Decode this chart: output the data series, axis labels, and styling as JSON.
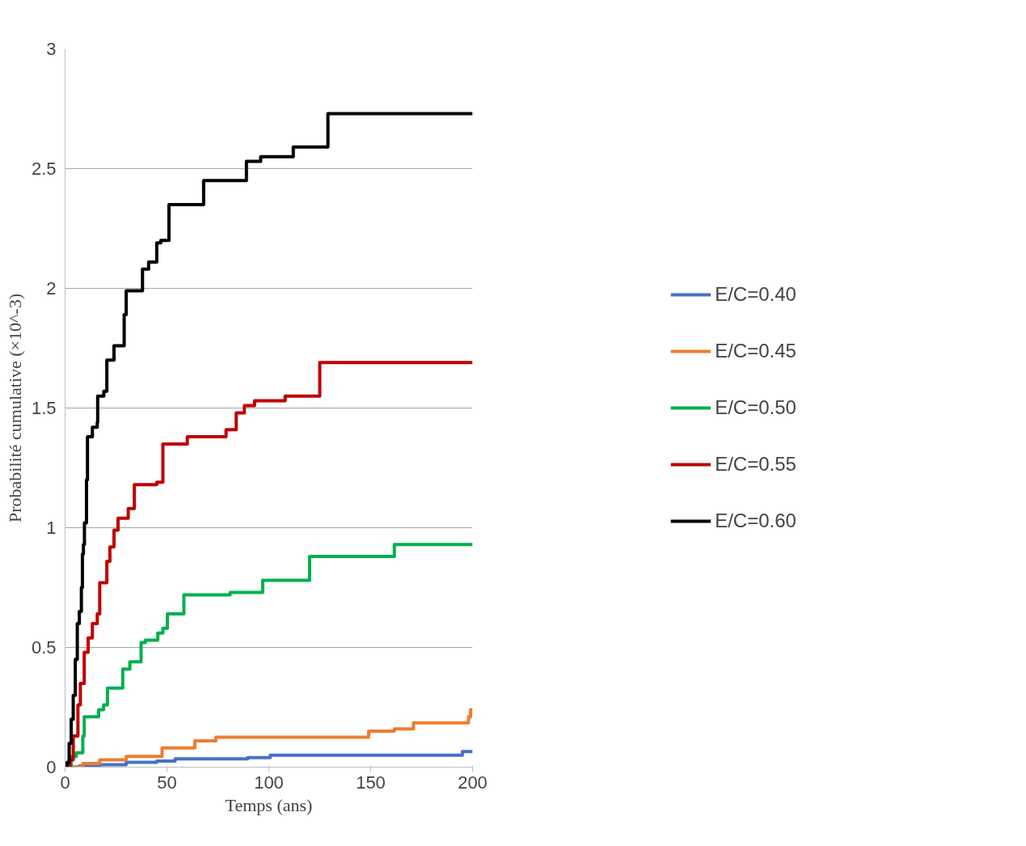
{
  "chart_data": {
    "type": "step",
    "xlabel": "Temps (ans)",
    "ylabel": "Probabilité cumulative (×10^-3)",
    "xlim": [
      0,
      200
    ],
    "xticks": [
      0,
      50,
      100,
      150,
      200
    ],
    "ylim": [
      0,
      3
    ],
    "yticks": [
      0,
      0.5,
      1,
      1.5,
      2,
      2.5,
      3
    ],
    "grid": "y",
    "legend": "right",
    "line_style": "solid",
    "marker": "none",
    "series": [
      {
        "name": "E/C=0.40",
        "color": "#4472c4",
        "x": [
          0,
          7,
          17,
          30,
          45,
          54,
          89.6,
          100.7,
          195,
          200
        ],
        "values": [
          0,
          0.005,
          0.01,
          0.02,
          0.025,
          0.035,
          0.04,
          0.05,
          0.065,
          0.065
        ]
      },
      {
        "name": "E/C=0.45",
        "color": "#ed7d31",
        "x": [
          0,
          8.7,
          17,
          30,
          47.6,
          63.7,
          74,
          149,
          161.6,
          171,
          198,
          199,
          200
        ],
        "values": [
          0,
          0.015,
          0.03,
          0.045,
          0.08,
          0.11,
          0.125,
          0.15,
          0.16,
          0.185,
          0.21,
          0.24,
          0.24
        ]
      },
      {
        "name": "E/C=0.50",
        "color": "#00b050",
        "x": [
          0,
          3,
          5.5,
          8.7,
          9.4,
          16.5,
          18.9,
          20.8,
          28.3,
          31.8,
          37.3,
          39.4,
          45.5,
          48,
          50.2,
          58.3,
          81,
          97,
          120,
          161.6,
          200
        ],
        "values": [
          0,
          0.045,
          0.06,
          0.13,
          0.21,
          0.24,
          0.26,
          0.33,
          0.41,
          0.44,
          0.52,
          0.53,
          0.56,
          0.58,
          0.64,
          0.72,
          0.73,
          0.78,
          0.88,
          0.93,
          0.93
        ]
      },
      {
        "name": "E/C=0.55",
        "color": "#c00000",
        "x": [
          0,
          2.4,
          4,
          6.3,
          7.5,
          9.4,
          11.3,
          13.4,
          15.8,
          17,
          20.5,
          22,
          24,
          26,
          31,
          34,
          45,
          48,
          60,
          79,
          84,
          88,
          93,
          108,
          125,
          200
        ],
        "values": [
          0,
          0.03,
          0.13,
          0.26,
          0.35,
          0.48,
          0.54,
          0.6,
          0.64,
          0.77,
          0.86,
          0.92,
          0.99,
          1.04,
          1.08,
          1.18,
          1.19,
          1.35,
          1.38,
          1.41,
          1.48,
          1.51,
          1.53,
          1.55,
          1.69,
          1.69
        ]
      },
      {
        "name": "E/C=0.60",
        "color": "#000000",
        "x": [
          0,
          1,
          2,
          3,
          4,
          5,
          6,
          7,
          8,
          8.5,
          9,
          9.5,
          10.5,
          11,
          13.4,
          15.8,
          16,
          19,
          20.5,
          24,
          29,
          30,
          38,
          41,
          45,
          47,
          51,
          68,
          89,
          96,
          112,
          129,
          200
        ],
        "values": [
          0,
          0.02,
          0.1,
          0.2,
          0.3,
          0.45,
          0.6,
          0.65,
          0.75,
          0.89,
          0.93,
          1.02,
          1.2,
          1.38,
          1.42,
          1.44,
          1.55,
          1.57,
          1.7,
          1.76,
          1.89,
          1.99,
          2.08,
          2.11,
          2.19,
          2.2,
          2.35,
          2.45,
          2.53,
          2.55,
          2.59,
          2.73,
          2.73
        ]
      }
    ]
  }
}
